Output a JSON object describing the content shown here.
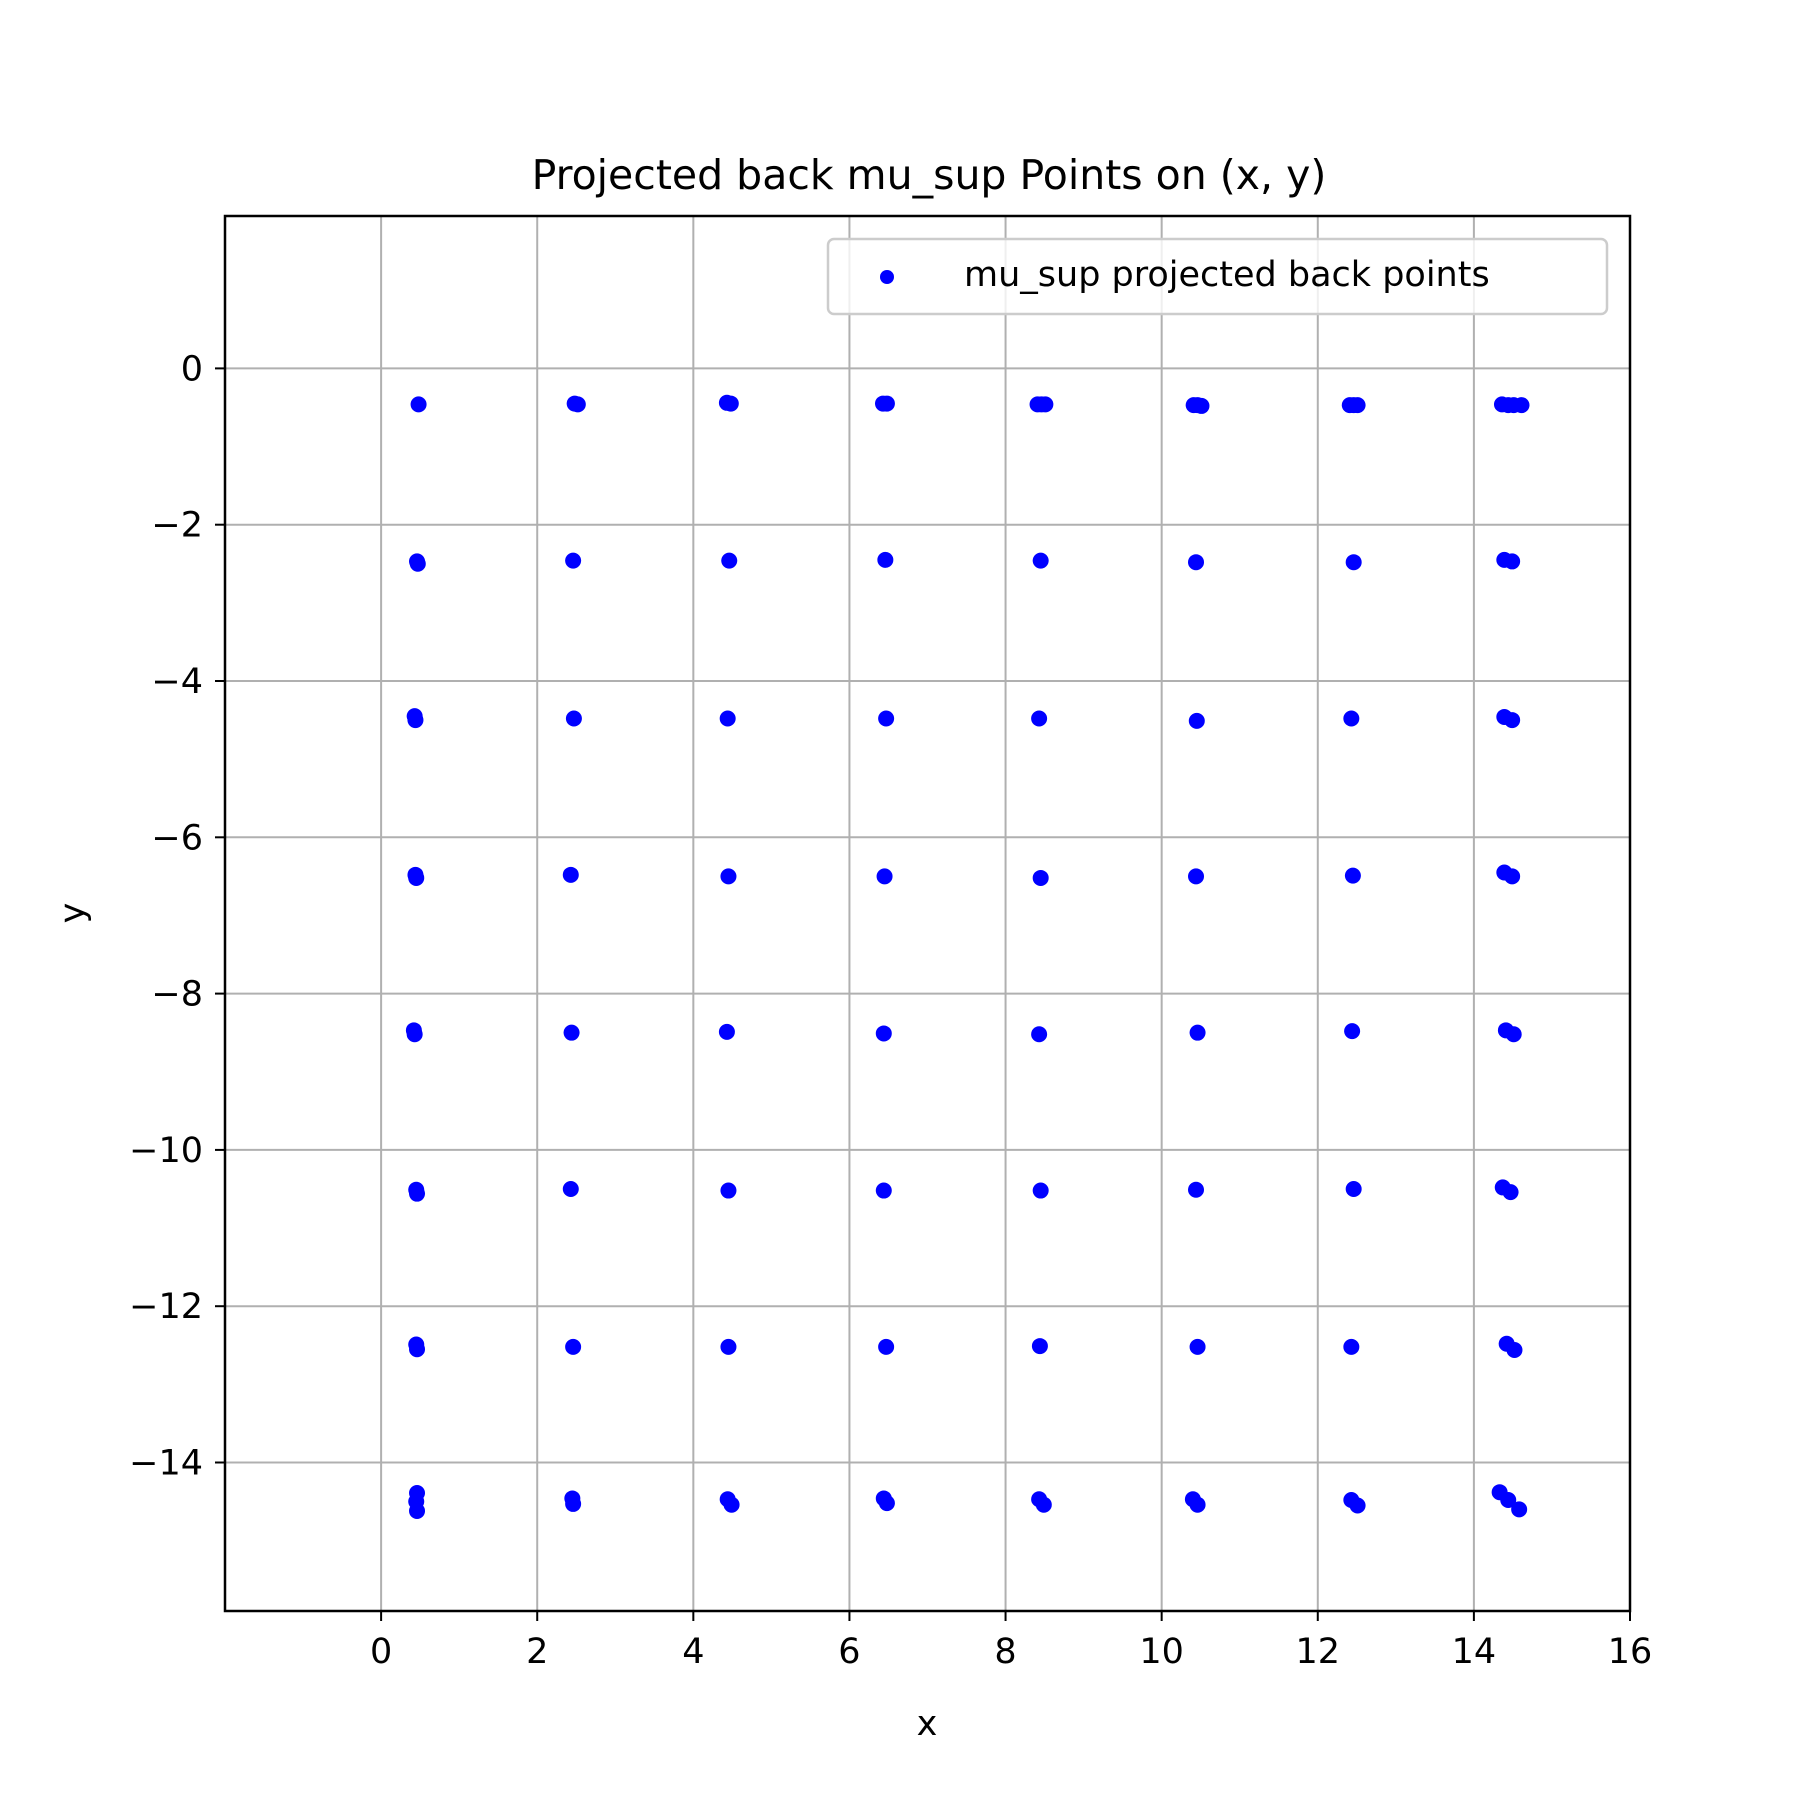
{
  "chart_data": {
    "type": "scatter",
    "title": "Projected back mu_sup Points on (x, y)",
    "xlabel": "x",
    "ylabel": "y",
    "xlim": [
      -2,
      16
    ],
    "ylim": [
      -15.9,
      1.95
    ],
    "xticks": [
      0,
      2,
      4,
      6,
      8,
      10,
      12,
      14,
      16
    ],
    "xtick_labels": [
      "0",
      "2",
      "4",
      "6",
      "8",
      "10",
      "12",
      "14",
      "16"
    ],
    "yticks": [
      0,
      -2,
      -4,
      -6,
      -8,
      -10,
      -12,
      -14
    ],
    "ytick_labels": [
      "0",
      "−2",
      "−4",
      "−6",
      "−8",
      "−10",
      "−12",
      "−14"
    ],
    "grid": true,
    "legend_position": "top-right",
    "series": [
      {
        "name": "mu_sup projected back points",
        "color": "#0000ff",
        "marker": "circle",
        "points": [
          [
            0.48,
            -0.46
          ],
          [
            2.48,
            -0.45
          ],
          [
            2.52,
            -0.46
          ],
          [
            4.43,
            -0.44
          ],
          [
            4.48,
            -0.45
          ],
          [
            6.43,
            -0.45
          ],
          [
            6.48,
            -0.45
          ],
          [
            8.41,
            -0.46
          ],
          [
            8.46,
            -0.46
          ],
          [
            8.51,
            -0.46
          ],
          [
            10.41,
            -0.47
          ],
          [
            10.46,
            -0.47
          ],
          [
            10.51,
            -0.48
          ],
          [
            12.41,
            -0.47
          ],
          [
            12.46,
            -0.47
          ],
          [
            12.51,
            -0.47
          ],
          [
            14.36,
            -0.46
          ],
          [
            14.44,
            -0.47
          ],
          [
            14.51,
            -0.47
          ],
          [
            14.61,
            -0.47
          ],
          [
            0.46,
            -2.47
          ],
          [
            0.47,
            -2.5
          ],
          [
            2.46,
            -2.46
          ],
          [
            4.46,
            -2.46
          ],
          [
            6.46,
            -2.45
          ],
          [
            8.45,
            -2.46
          ],
          [
            10.44,
            -2.48
          ],
          [
            12.46,
            -2.48
          ],
          [
            14.39,
            -2.45
          ],
          [
            14.49,
            -2.47
          ],
          [
            0.43,
            -4.45
          ],
          [
            0.44,
            -4.5
          ],
          [
            2.47,
            -4.48
          ],
          [
            4.44,
            -4.48
          ],
          [
            6.47,
            -4.48
          ],
          [
            8.43,
            -4.48
          ],
          [
            10.45,
            -4.51
          ],
          [
            12.43,
            -4.48
          ],
          [
            14.39,
            -4.46
          ],
          [
            14.49,
            -4.5
          ],
          [
            0.44,
            -6.48
          ],
          [
            0.45,
            -6.52
          ],
          [
            2.43,
            -6.48
          ],
          [
            4.45,
            -6.5
          ],
          [
            6.45,
            -6.5
          ],
          [
            8.45,
            -6.52
          ],
          [
            10.44,
            -6.5
          ],
          [
            12.45,
            -6.49
          ],
          [
            14.39,
            -6.45
          ],
          [
            14.49,
            -6.5
          ],
          [
            0.42,
            -8.47
          ],
          [
            0.43,
            -8.52
          ],
          [
            2.44,
            -8.5
          ],
          [
            4.43,
            -8.49
          ],
          [
            6.44,
            -8.51
          ],
          [
            8.43,
            -8.52
          ],
          [
            10.46,
            -8.5
          ],
          [
            12.44,
            -8.48
          ],
          [
            14.41,
            -8.47
          ],
          [
            14.51,
            -8.52
          ],
          [
            0.45,
            -10.51
          ],
          [
            0.46,
            -10.56
          ],
          [
            2.43,
            -10.5
          ],
          [
            4.45,
            -10.52
          ],
          [
            6.44,
            -10.52
          ],
          [
            8.45,
            -10.52
          ],
          [
            10.44,
            -10.51
          ],
          [
            12.46,
            -10.5
          ],
          [
            14.37,
            -10.48
          ],
          [
            14.47,
            -10.54
          ],
          [
            0.45,
            -12.49
          ],
          [
            0.46,
            -12.55
          ],
          [
            2.46,
            -12.52
          ],
          [
            4.45,
            -12.52
          ],
          [
            6.47,
            -12.52
          ],
          [
            8.44,
            -12.51
          ],
          [
            10.46,
            -12.52
          ],
          [
            12.43,
            -12.52
          ],
          [
            14.42,
            -12.48
          ],
          [
            14.52,
            -12.56
          ],
          [
            0.46,
            -14.39
          ],
          [
            0.45,
            -14.5
          ],
          [
            0.46,
            -14.62
          ],
          [
            2.45,
            -14.46
          ],
          [
            2.46,
            -14.53
          ],
          [
            4.44,
            -14.47
          ],
          [
            4.49,
            -14.54
          ],
          [
            6.44,
            -14.46
          ],
          [
            6.48,
            -14.52
          ],
          [
            8.43,
            -14.47
          ],
          [
            8.49,
            -14.54
          ],
          [
            10.4,
            -14.47
          ],
          [
            10.46,
            -14.54
          ],
          [
            12.43,
            -14.48
          ],
          [
            12.51,
            -14.55
          ],
          [
            14.33,
            -14.38
          ],
          [
            14.44,
            -14.48
          ],
          [
            14.58,
            -14.6
          ]
        ]
      }
    ]
  }
}
